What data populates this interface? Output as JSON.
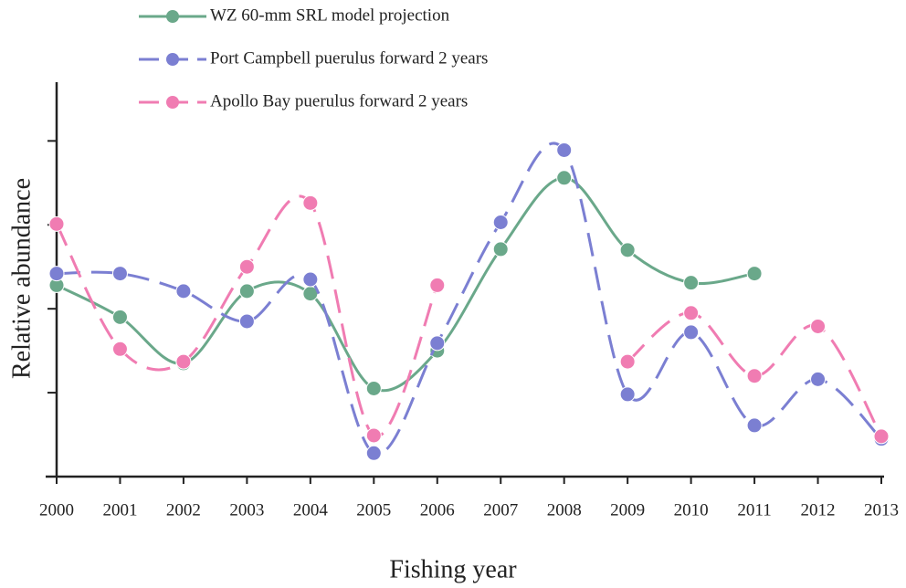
{
  "chart_data": {
    "type": "line",
    "x_label": "Fishing year",
    "y_label": "Relative abundance",
    "categories": [
      "2000",
      "2001",
      "2002",
      "2003",
      "2004",
      "2005",
      "2006",
      "2007",
      "2008",
      "2009",
      "2010",
      "2011",
      "2012",
      "2013"
    ],
    "ylim": [
      0,
      4.7
    ],
    "yticks": [
      0,
      1,
      2,
      3,
      4
    ],
    "smooth": true,
    "series": [
      {
        "name": "WZ 60-mm SRL model projection",
        "color": "#6aa88a",
        "dashed": false,
        "values": [
          2.28,
          1.9,
          1.35,
          2.21,
          2.18,
          1.05,
          1.5,
          2.71,
          3.56,
          2.7,
          2.31,
          2.42,
          null,
          null
        ]
      },
      {
        "name": "Port Campbell puerulus forward 2 years",
        "color": "#7b7fd2",
        "dashed": true,
        "values": [
          2.42,
          2.42,
          2.21,
          1.85,
          2.35,
          0.28,
          1.59,
          3.03,
          3.89,
          0.98,
          1.72,
          0.61,
          1.16,
          0.45
        ]
      },
      {
        "name": "Apollo Bay puerulus forward 2 years",
        "color": "#f07cb2",
        "dashed": true,
        "values": [
          3.01,
          1.52,
          1.37,
          2.5,
          3.26,
          0.49,
          2.28,
          null,
          null,
          1.37,
          1.95,
          1.2,
          1.79,
          0.48
        ]
      }
    ]
  }
}
